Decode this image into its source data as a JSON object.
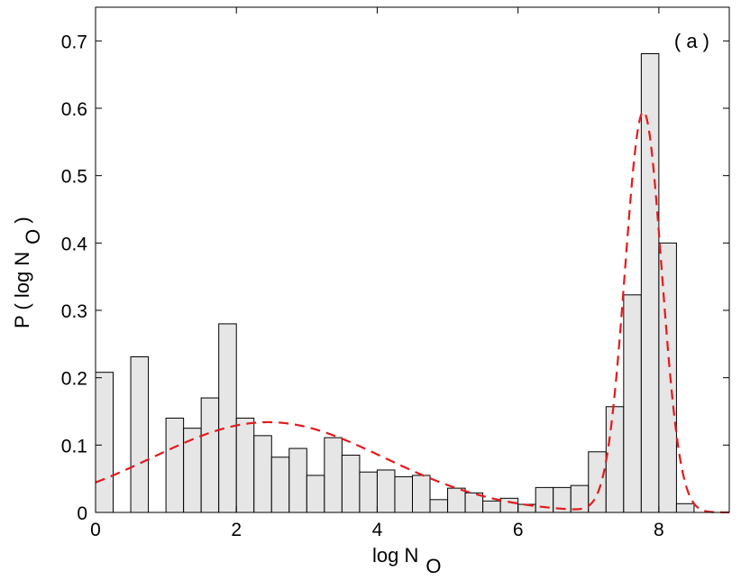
{
  "chart_data": {
    "type": "bar",
    "subtype": "histogram-with-fit",
    "annotation": "( a )",
    "xlabel": {
      "main": "log N",
      "sub": "O"
    },
    "ylabel": {
      "main": "P ( log N",
      "sub": "O",
      "tail": " )"
    },
    "xlim": [
      0,
      9
    ],
    "ylim": [
      0,
      0.75
    ],
    "xticks": [
      0,
      2,
      4,
      6,
      8
    ],
    "xtick_labels": [
      "0",
      "2",
      "4",
      "6",
      "8"
    ],
    "yticks": [
      0,
      0.1,
      0.2,
      0.3,
      0.4,
      0.5,
      0.6,
      0.7
    ],
    "ytick_labels": [
      "0",
      "0.1",
      "0.2",
      "0.3",
      "0.4",
      "0.5",
      "0.6",
      "0.7"
    ],
    "grid": false,
    "bin_width": 0.25,
    "bar_color": "#e6e6e6",
    "bar_edge_color": "#000000",
    "bins": [
      {
        "x": 0.0,
        "v": 0.208
      },
      {
        "x": 0.25,
        "v": 0.0
      },
      {
        "x": 0.5,
        "v": 0.231
      },
      {
        "x": 0.75,
        "v": 0.0
      },
      {
        "x": 1.0,
        "v": 0.14
      },
      {
        "x": 1.25,
        "v": 0.125
      },
      {
        "x": 1.5,
        "v": 0.17
      },
      {
        "x": 1.75,
        "v": 0.28
      },
      {
        "x": 2.0,
        "v": 0.14
      },
      {
        "x": 2.25,
        "v": 0.114
      },
      {
        "x": 2.5,
        "v": 0.082
      },
      {
        "x": 2.75,
        "v": 0.095
      },
      {
        "x": 3.0,
        "v": 0.055
      },
      {
        "x": 3.25,
        "v": 0.111
      },
      {
        "x": 3.5,
        "v": 0.085
      },
      {
        "x": 3.75,
        "v": 0.06
      },
      {
        "x": 4.0,
        "v": 0.063
      },
      {
        "x": 4.25,
        "v": 0.053
      },
      {
        "x": 4.5,
        "v": 0.055
      },
      {
        "x": 4.75,
        "v": 0.019
      },
      {
        "x": 5.0,
        "v": 0.036
      },
      {
        "x": 5.25,
        "v": 0.029
      },
      {
        "x": 5.5,
        "v": 0.017
      },
      {
        "x": 5.75,
        "v": 0.021
      },
      {
        "x": 6.0,
        "v": 0.012
      },
      {
        "x": 6.25,
        "v": 0.037
      },
      {
        "x": 6.5,
        "v": 0.037
      },
      {
        "x": 6.75,
        "v": 0.04
      },
      {
        "x": 7.0,
        "v": 0.09
      },
      {
        "x": 7.25,
        "v": 0.157
      },
      {
        "x": 7.5,
        "v": 0.323
      },
      {
        "x": 7.75,
        "v": 0.681
      },
      {
        "x": 8.0,
        "v": 0.4
      },
      {
        "x": 8.25,
        "v": 0.013
      }
    ],
    "fit_curve": {
      "style": "dashed",
      "color": "#e31a1c",
      "components": [
        {
          "amplitude": 0.134,
          "mean": 2.45,
          "sigma": 1.65
        },
        {
          "amplitude": 0.594,
          "mean": 7.78,
          "sigma": 0.26
        }
      ],
      "x_range": [
        0,
        9
      ]
    }
  }
}
